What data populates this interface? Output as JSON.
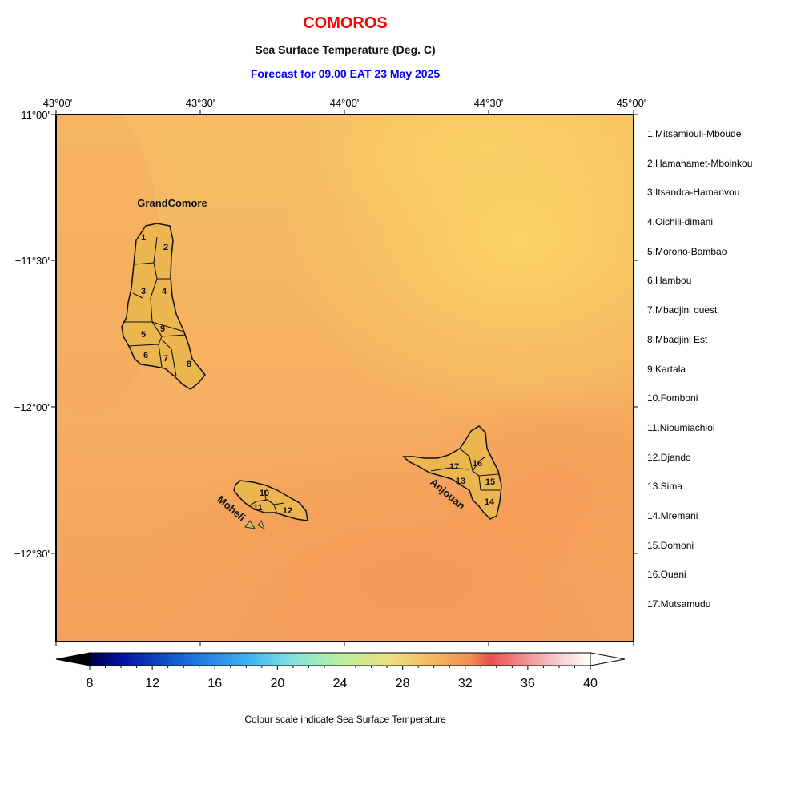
{
  "title": "COMOROS",
  "subtitle": "Sea Surface Temperature (Deg. C)",
  "forecast": "Forecast for  09.00 EAT 23 May 2025",
  "caption": "Colour scale indicate Sea Surface Temperature",
  "lon_labels": [
    "43°00'",
    "43°30'",
    "44°00'",
    "44°30'",
    "45°00'"
  ],
  "lat_labels": [
    "−11°00'",
    "−11°30'",
    "−12°00'",
    "−12°30'"
  ],
  "islands": {
    "grand_comore": "GrandComore",
    "moheli": "Moheli",
    "anjouan": "Anjouan"
  },
  "region_numbers": [
    "1",
    "2",
    "3",
    "4",
    "5",
    "6",
    "7",
    "8",
    "9",
    "10",
    "11",
    "12",
    "13",
    "14",
    "15",
    "16",
    "17"
  ],
  "regions": [
    "1.Mitsamiouli-Mboude",
    "2.Hamahamet-Mboinkou",
    "3.Itsandra-Hamanvou",
    "4.Oichili-dimani",
    "5.Morono-Bambao",
    "6.Hambou",
    "7.Mbadjini ouest",
    "8.Mbadjini Est",
    "9.Kartala",
    "10.Fomboni",
    "11.Nioumiachioi",
    "12.Djando",
    "13.Sima",
    "14.Mremani",
    "15.Domoni",
    "16.Ouani",
    "17.Mutsamudu"
  ],
  "colorbar": {
    "ticks": [
      "8",
      "12",
      "16",
      "20",
      "24",
      "28",
      "32",
      "36",
      "40"
    ],
    "min": 8,
    "max": 40
  },
  "colors": {
    "sea_warm": "#f4a05c",
    "sea_cool": "#f8c562",
    "land": "#ebb550",
    "title": "#ff0000",
    "forecast": "#0000ff"
  }
}
